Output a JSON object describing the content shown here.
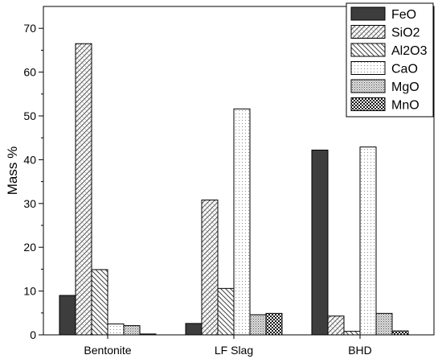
{
  "chart_data": {
    "type": "bar",
    "title": "",
    "xlabel": "",
    "ylabel": "Mass %",
    "ylim": [
      0,
      75
    ],
    "yticks": [
      0,
      10,
      20,
      30,
      40,
      50,
      60,
      70
    ],
    "categories": [
      "Bentonite",
      "LF Slag",
      "BHD"
    ],
    "series": [
      {
        "name": "FeO",
        "values": [
          9.0,
          2.6,
          42.2
        ],
        "pattern": "solid-dark"
      },
      {
        "name": "SiO2",
        "values": [
          66.5,
          30.8,
          4.3
        ],
        "pattern": "crosshatch-diag"
      },
      {
        "name": "Al2O3",
        "values": [
          14.9,
          10.6,
          0.8
        ],
        "pattern": "diag-back"
      },
      {
        "name": "CaO",
        "values": [
          2.5,
          51.6,
          42.9
        ],
        "pattern": "light-dots"
      },
      {
        "name": "MgO",
        "values": [
          2.1,
          4.6,
          4.9
        ],
        "pattern": "dense-dots"
      },
      {
        "name": "MnO",
        "values": [
          0.2,
          4.9,
          0.9
        ],
        "pattern": "checker"
      }
    ],
    "legend_position": "top-right",
    "grid": false
  }
}
